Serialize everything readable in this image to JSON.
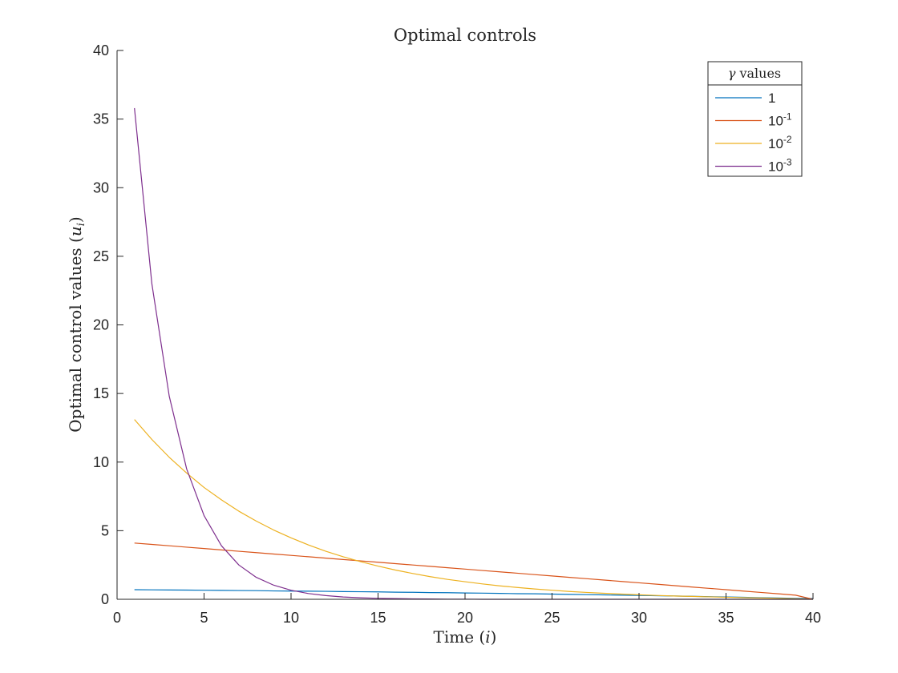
{
  "chart_data": {
    "type": "line",
    "title": "Optimal controls",
    "xlabel_text": "Time (",
    "xlabel_var": "i",
    "xlabel_close": ")",
    "ylabel_text": "Optimal control values (",
    "ylabel_var": "u",
    "ylabel_sub": "i",
    "ylabel_close": ")",
    "xlim": [
      0,
      40
    ],
    "ylim": [
      0,
      40
    ],
    "xticks": [
      0,
      5,
      10,
      15,
      20,
      25,
      30,
      35,
      40
    ],
    "yticks": [
      0,
      5,
      10,
      15,
      20,
      25,
      30,
      35,
      40
    ],
    "grid": false,
    "legend": {
      "placement": "top-right",
      "title_symbol": "γ",
      "title_text": "values",
      "entries": [
        {
          "base": "1",
          "exp": ""
        },
        {
          "base": "10",
          "exp": "-1"
        },
        {
          "base": "10",
          "exp": "-2"
        },
        {
          "base": "10",
          "exp": "-3"
        }
      ]
    },
    "x": [
      1,
      2,
      3,
      4,
      5,
      6,
      7,
      8,
      9,
      10,
      11,
      12,
      13,
      14,
      15,
      16,
      17,
      18,
      19,
      20,
      21,
      22,
      23,
      24,
      25,
      26,
      27,
      28,
      29,
      30,
      31,
      32,
      33,
      34,
      35,
      36,
      37,
      38,
      39,
      40
    ],
    "series": [
      {
        "color": "#0072BD",
        "values": [
          0.7,
          0.69,
          0.68,
          0.67,
          0.66,
          0.65,
          0.64,
          0.63,
          0.61,
          0.6,
          0.59,
          0.58,
          0.56,
          0.55,
          0.54,
          0.52,
          0.51,
          0.49,
          0.48,
          0.46,
          0.45,
          0.43,
          0.41,
          0.4,
          0.38,
          0.36,
          0.34,
          0.32,
          0.3,
          0.28,
          0.26,
          0.24,
          0.22,
          0.19,
          0.17,
          0.15,
          0.12,
          0.1,
          0.07,
          0.05
        ]
      },
      {
        "color": "#D95319",
        "values": [
          4.1,
          4.0,
          3.9,
          3.8,
          3.7,
          3.6,
          3.5,
          3.4,
          3.3,
          3.2,
          3.1,
          3.0,
          2.9,
          2.8,
          2.7,
          2.6,
          2.5,
          2.4,
          2.3,
          2.2,
          2.1,
          2.0,
          1.9,
          1.8,
          1.7,
          1.6,
          1.5,
          1.4,
          1.3,
          1.2,
          1.1,
          1.0,
          0.9,
          0.8,
          0.7,
          0.6,
          0.5,
          0.4,
          0.3,
          0.0
        ]
      },
      {
        "color": "#EDB120",
        "values": [
          13.1,
          11.65,
          10.35,
          9.2,
          8.15,
          7.25,
          6.42,
          5.7,
          5.05,
          4.48,
          3.96,
          3.5,
          3.1,
          2.74,
          2.42,
          2.13,
          1.88,
          1.65,
          1.45,
          1.28,
          1.12,
          0.98,
          0.86,
          0.75,
          0.66,
          0.57,
          0.5,
          0.44,
          0.38,
          0.33,
          0.28,
          0.24,
          0.21,
          0.18,
          0.15,
          0.12,
          0.1,
          0.07,
          0.04,
          0.0
        ]
      },
      {
        "color": "#7E2F8E",
        "values": [
          35.8,
          23.0,
          14.8,
          9.5,
          6.1,
          3.9,
          2.5,
          1.6,
          1.03,
          0.66,
          0.42,
          0.27,
          0.17,
          0.11,
          0.07,
          0.05,
          0.03,
          0.02,
          0.01,
          0.01,
          0.0,
          0.0,
          0.0,
          0.0,
          0.0,
          0.0,
          0.0,
          0.0,
          0.0,
          0.0,
          0.0,
          0.0,
          0.0,
          0.0,
          0.0,
          0.0,
          0.0,
          0.0,
          0.0,
          0.0
        ]
      }
    ]
  }
}
